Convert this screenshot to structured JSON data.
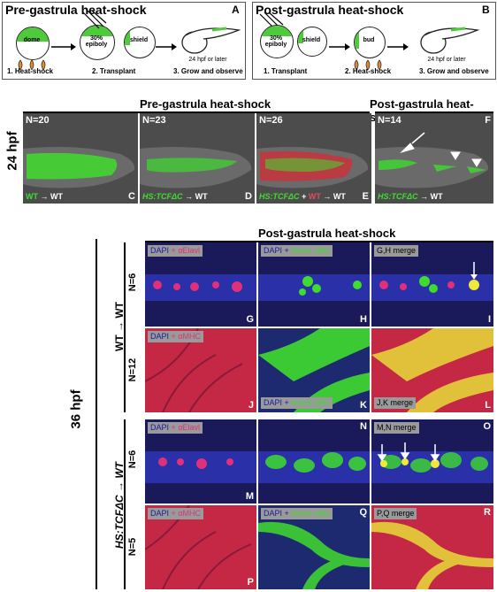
{
  "box_a": {
    "title": "Pre-gastrula heat-shock",
    "letter": "A",
    "stages": [
      "dome",
      "30% epiboly",
      "shield",
      "24 hpf or later"
    ],
    "steps": [
      "1. Heat-shock",
      "2. Transplant",
      "3. Grow and observe"
    ]
  },
  "box_b": {
    "title": "Post-gastrula heat-shock",
    "letter": "B",
    "stages": [
      "30% epiboly",
      "shield",
      "bud",
      "24 hpf or later"
    ],
    "steps": [
      "1. Transplant",
      "2. Heat-shock",
      "3. Grow and observe"
    ]
  },
  "row24": {
    "time_label": "24 hpf",
    "pre_header": "Pre-gastrula heat-shock",
    "post_header": "Post-gastrula heat-shock",
    "panels": [
      {
        "letter": "C",
        "n": "N=20",
        "cap_a": "WT",
        "cap_b": "",
        "cap_c": "WT"
      },
      {
        "letter": "D",
        "n": "N=23",
        "cap_a": "HS:TCFΔC",
        "cap_b": "",
        "cap_c": "WT"
      },
      {
        "letter": "E",
        "n": "N=26",
        "cap_a": "HS:TCFΔC",
        "cap_b": "WT",
        "cap_c": "WT"
      },
      {
        "letter": "F",
        "n": "N=14",
        "cap_a": "HS:TCFΔC",
        "cap_b": "",
        "cap_c": "WT"
      }
    ],
    "arrow_plus": "+",
    "arrow_glyph": "→"
  },
  "row36": {
    "time_label": "36 hpf",
    "header": "Post-gastrula heat-shock",
    "group1_label": "WT → WT",
    "group2_label": "HS:TCFΔC → WT",
    "n_labels": [
      "N=6",
      "N=12",
      "N=6",
      "N=5"
    ],
    "dapi": "DAPI",
    "plus": "+",
    "elavl": "αElavl",
    "mhc": "αMHC",
    "donor": "donor cells",
    "merges": [
      "G,H merge",
      "J,K merge",
      "M,N merge",
      "P,Q merge"
    ],
    "letters": [
      "G",
      "H",
      "I",
      "J",
      "K",
      "L",
      "M",
      "N",
      "O",
      "P",
      "Q",
      "R"
    ]
  }
}
